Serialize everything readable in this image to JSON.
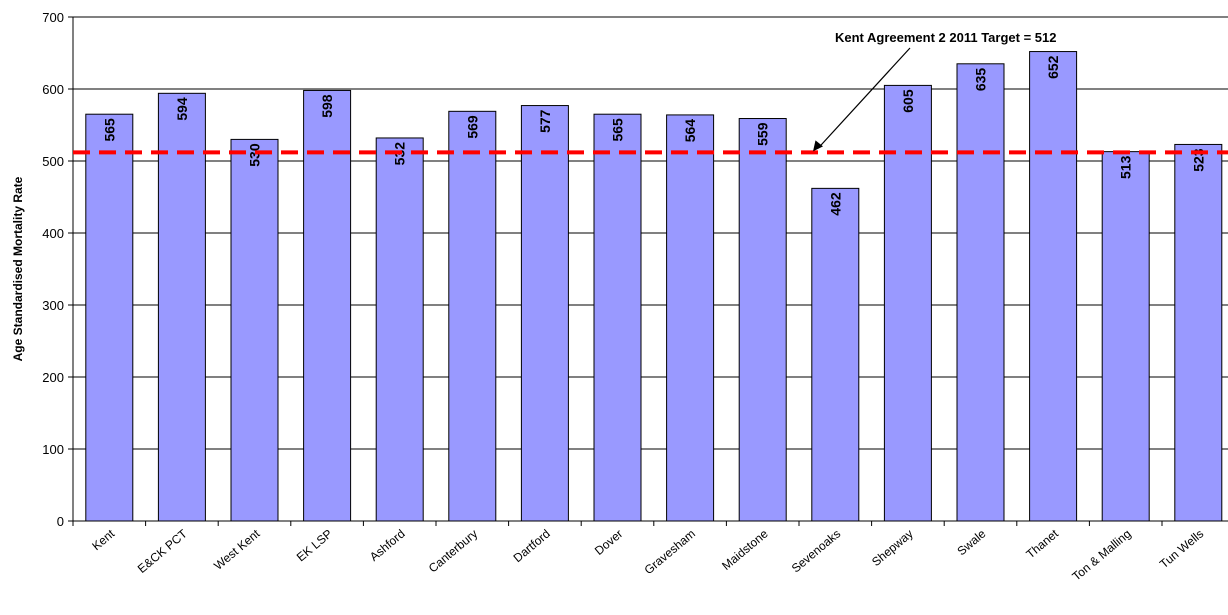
{
  "chart_data": {
    "type": "bar",
    "title": "",
    "xlabel": "",
    "ylabel": "Age Standardised Mortality Rate",
    "ylim": [
      0,
      700
    ],
    "yticks": [
      0,
      100,
      200,
      300,
      400,
      500,
      600,
      700
    ],
    "grid": true,
    "categories": [
      "Kent",
      "E&CK PCT",
      "West Kent",
      "EK LSP",
      "Ashford",
      "Canterbury",
      "Dartford",
      "Dover",
      "Gravesham",
      "Maidstone",
      "Sevenoaks",
      "Shepway",
      "Swale",
      "Thanet",
      "Ton & Malling",
      "Tun Wells"
    ],
    "values": [
      565,
      594,
      530,
      598,
      532,
      569,
      577,
      565,
      564,
      559,
      462,
      605,
      635,
      652,
      513,
      523
    ],
    "target": {
      "value": 512,
      "label": "Kent Agreement 2 2011 Target = 512"
    },
    "colors": {
      "bar_fill": "#9999ff",
      "bar_stroke": "#000000",
      "target_line": "#ff0000",
      "grid": "#000000"
    }
  }
}
